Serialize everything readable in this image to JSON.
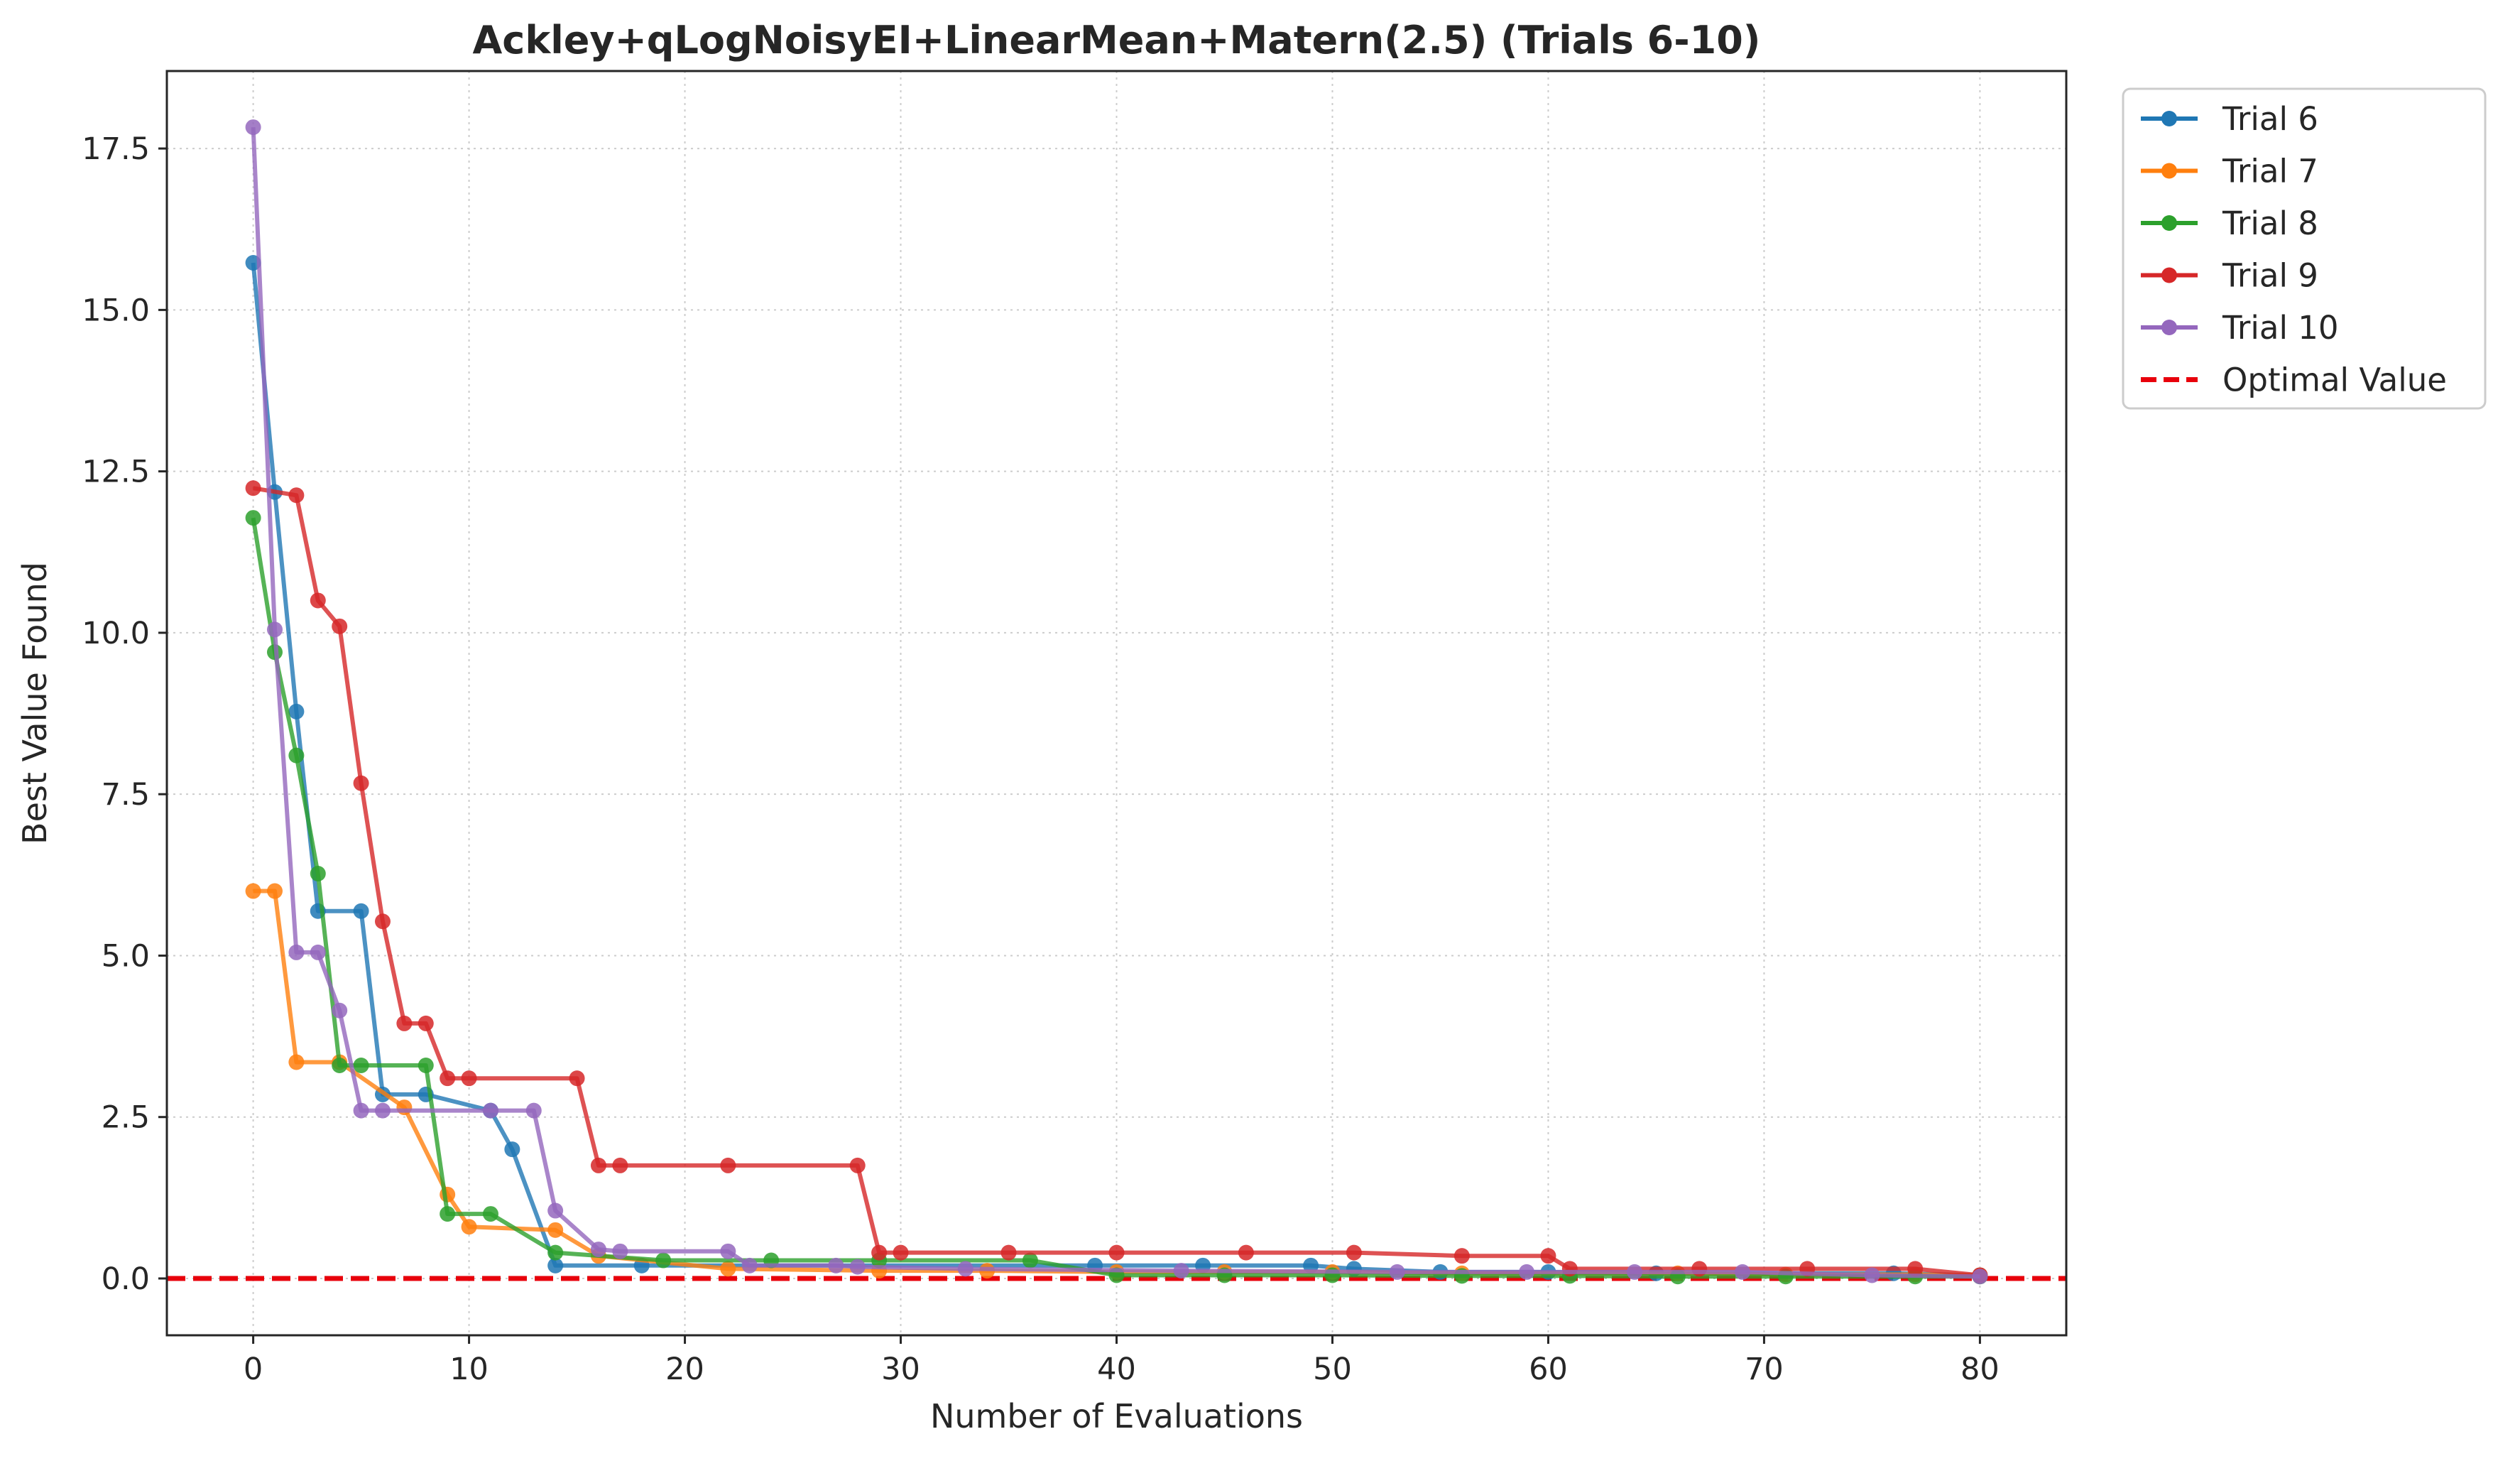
{
  "chart_data": {
    "type": "line",
    "title": "Ackley+qLogNoisyEI+LinearMean+Matern(2.5) (Trials 6-10)",
    "xlabel": "Number of Evaluations",
    "ylabel": "Best Value Found",
    "xlim": [
      -4,
      84
    ],
    "ylim": [
      -0.88,
      18.7
    ],
    "xticks": [
      0,
      10,
      20,
      30,
      40,
      50,
      60,
      70,
      80
    ],
    "yticks": [
      0.0,
      2.5,
      5.0,
      7.5,
      10.0,
      12.5,
      15.0,
      17.5
    ],
    "xtick_labels": [
      "0",
      "10",
      "20",
      "30",
      "40",
      "50",
      "60",
      "70",
      "80"
    ],
    "ytick_labels": [
      "0.0",
      "2.5",
      "5.0",
      "7.5",
      "10.0",
      "12.5",
      "15.0",
      "17.5"
    ],
    "grid": true,
    "legend_position": "outside-top-right",
    "series": [
      {
        "name": "Trial 6",
        "color": "#1f77b4",
        "points": [
          [
            0,
            15.73
          ],
          [
            1,
            12.18
          ],
          [
            2,
            8.78
          ],
          [
            3,
            5.69
          ],
          [
            5,
            5.69
          ],
          [
            6,
            2.85
          ],
          [
            8,
            2.85
          ],
          [
            11,
            2.6
          ],
          [
            12,
            2.0
          ],
          [
            14,
            0.2
          ],
          [
            18,
            0.2
          ],
          [
            39,
            0.2
          ],
          [
            44,
            0.2
          ],
          [
            49,
            0.2
          ],
          [
            51,
            0.15
          ],
          [
            55,
            0.1
          ],
          [
            60,
            0.1
          ],
          [
            65,
            0.08
          ],
          [
            76,
            0.08
          ],
          [
            80,
            0.05
          ]
        ]
      },
      {
        "name": "Trial 7",
        "color": "#ff7f0e",
        "points": [
          [
            0,
            6.0
          ],
          [
            1,
            6.0
          ],
          [
            2,
            3.35
          ],
          [
            4,
            3.35
          ],
          [
            7,
            2.65
          ],
          [
            9,
            1.3
          ],
          [
            10,
            0.8
          ],
          [
            14,
            0.75
          ],
          [
            16,
            0.35
          ],
          [
            22,
            0.15
          ],
          [
            29,
            0.12
          ],
          [
            34,
            0.12
          ],
          [
            40,
            0.1
          ],
          [
            45,
            0.1
          ],
          [
            50,
            0.1
          ],
          [
            56,
            0.08
          ],
          [
            66,
            0.08
          ],
          [
            71,
            0.06
          ],
          [
            77,
            0.06
          ],
          [
            80,
            0.05
          ]
        ]
      },
      {
        "name": "Trial 8",
        "color": "#2ca02c",
        "points": [
          [
            0,
            11.78
          ],
          [
            1,
            9.7
          ],
          [
            2,
            8.1
          ],
          [
            3,
            6.27
          ],
          [
            4,
            3.3
          ],
          [
            5,
            3.3
          ],
          [
            8,
            3.3
          ],
          [
            9,
            1.0
          ],
          [
            11,
            1.0
          ],
          [
            14,
            0.4
          ],
          [
            19,
            0.28
          ],
          [
            24,
            0.28
          ],
          [
            29,
            0.28
          ],
          [
            36,
            0.28
          ],
          [
            40,
            0.05
          ],
          [
            45,
            0.05
          ],
          [
            50,
            0.05
          ],
          [
            56,
            0.04
          ],
          [
            61,
            0.04
          ],
          [
            66,
            0.03
          ],
          [
            71,
            0.03
          ],
          [
            77,
            0.03
          ],
          [
            80,
            0.03
          ]
        ]
      },
      {
        "name": "Trial 9",
        "color": "#d62728",
        "points": [
          [
            0,
            12.24
          ],
          [
            2,
            12.13
          ],
          [
            3,
            10.5
          ],
          [
            4,
            10.1
          ],
          [
            5,
            7.67
          ],
          [
            6,
            5.53
          ],
          [
            7,
            3.95
          ],
          [
            8,
            3.95
          ],
          [
            9,
            3.1
          ],
          [
            10,
            3.1
          ],
          [
            15,
            3.1
          ],
          [
            16,
            1.75
          ],
          [
            17,
            1.75
          ],
          [
            22,
            1.75
          ],
          [
            28,
            1.75
          ],
          [
            29,
            0.4
          ],
          [
            30,
            0.4
          ],
          [
            35,
            0.4
          ],
          [
            40,
            0.4
          ],
          [
            46,
            0.4
          ],
          [
            51,
            0.4
          ],
          [
            56,
            0.35
          ],
          [
            60,
            0.35
          ],
          [
            61,
            0.15
          ],
          [
            67,
            0.15
          ],
          [
            72,
            0.15
          ],
          [
            77,
            0.15
          ],
          [
            80,
            0.05
          ]
        ]
      },
      {
        "name": "Trial 10",
        "color": "#9467bd",
        "points": [
          [
            0,
            17.83
          ],
          [
            1,
            10.05
          ],
          [
            2,
            5.05
          ],
          [
            3,
            5.05
          ],
          [
            4,
            4.15
          ],
          [
            5,
            2.6
          ],
          [
            6,
            2.6
          ],
          [
            11,
            2.6
          ],
          [
            13,
            2.6
          ],
          [
            14,
            1.05
          ],
          [
            16,
            0.45
          ],
          [
            17,
            0.42
          ],
          [
            22,
            0.42
          ],
          [
            23,
            0.2
          ],
          [
            27,
            0.2
          ],
          [
            28,
            0.18
          ],
          [
            33,
            0.15
          ],
          [
            43,
            0.12
          ],
          [
            53,
            0.1
          ],
          [
            59,
            0.1
          ],
          [
            64,
            0.1
          ],
          [
            69,
            0.1
          ],
          [
            75,
            0.05
          ],
          [
            80,
            0.03
          ]
        ]
      }
    ],
    "reference_line": {
      "name": "Optimal Value",
      "y": 0.0,
      "color": "#e8000b",
      "style": "dashed"
    }
  }
}
